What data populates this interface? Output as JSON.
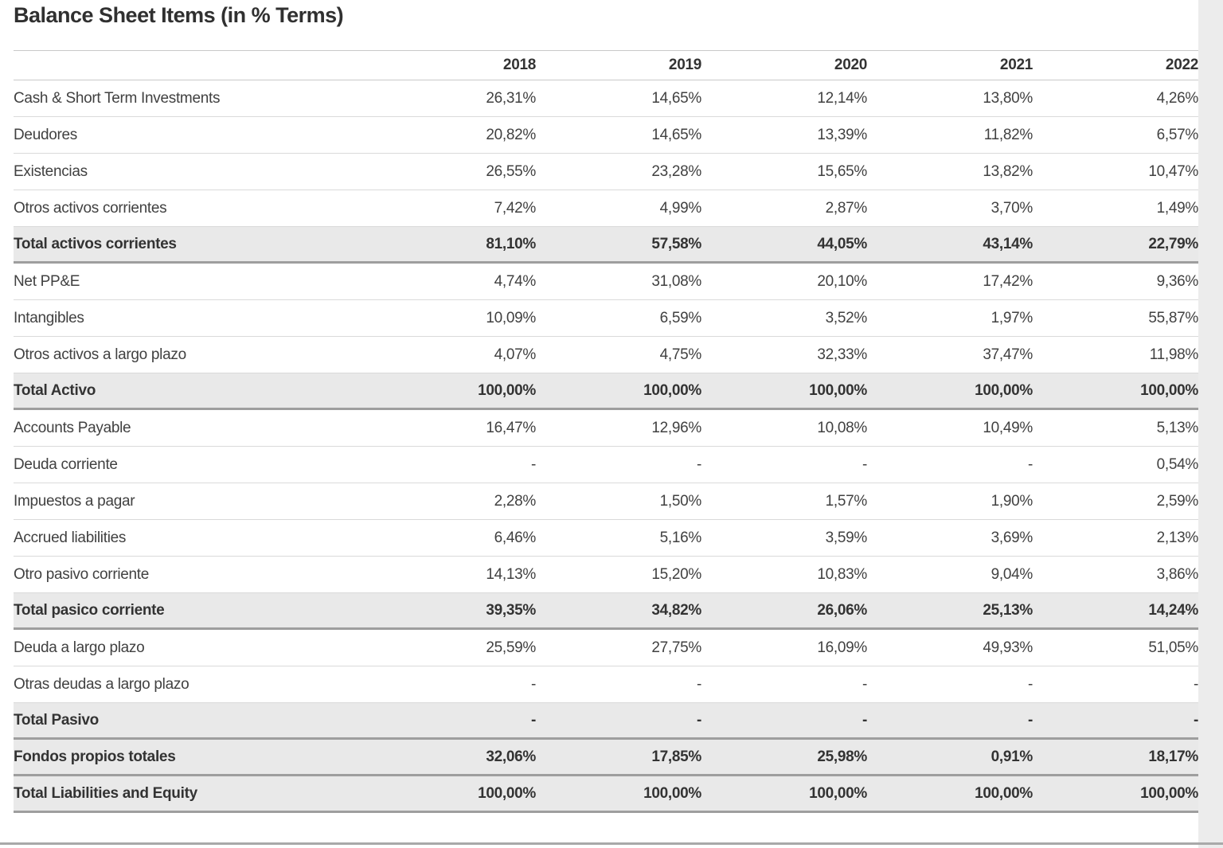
{
  "title": "Balance Sheet Items (in % Terms)",
  "table": {
    "columns": [
      "2018",
      "2019",
      "2020",
      "2021",
      "2022"
    ],
    "rows": [
      {
        "label": "Cash & Short Term Investments",
        "style": "normal",
        "cells": [
          "26,31%",
          "14,65%",
          "12,14%",
          "13,80%",
          "4,26%"
        ]
      },
      {
        "label": "Deudores",
        "style": "normal",
        "cells": [
          "20,82%",
          "14,65%",
          "13,39%",
          "11,82%",
          "6,57%"
        ]
      },
      {
        "label": "Existencias",
        "style": "normal",
        "cells": [
          "26,55%",
          "23,28%",
          "15,65%",
          "13,82%",
          "10,47%"
        ]
      },
      {
        "label": "Otros activos corrientes",
        "style": "normal",
        "cells": [
          "7,42%",
          "4,99%",
          "2,87%",
          "3,70%",
          "1,49%"
        ]
      },
      {
        "label": "Total activos corrientes",
        "style": "total",
        "cells": [
          "81,10%",
          "57,58%",
          "44,05%",
          "43,14%",
          "22,79%"
        ]
      },
      {
        "label": "Net PP&E",
        "style": "normal",
        "underline": true,
        "cells": [
          "4,74%",
          "31,08%",
          "20,10%",
          "17,42%",
          "9,36%"
        ]
      },
      {
        "label": "Intangibles",
        "style": "normal",
        "cells": [
          "10,09%",
          "6,59%",
          "3,52%",
          "1,97%",
          "55,87%"
        ]
      },
      {
        "label": "Otros activos a largo plazo",
        "style": "normal",
        "cells": [
          "4,07%",
          "4,75%",
          "32,33%",
          "37,47%",
          "11,98%"
        ]
      },
      {
        "label": "Total Activo",
        "style": "total",
        "cells": [
          "100,00%",
          "100,00%",
          "100,00%",
          "100,00%",
          "100,00%"
        ]
      },
      {
        "label": "Accounts Payable",
        "style": "normal",
        "cells": [
          "16,47%",
          "12,96%",
          "10,08%",
          "10,49%",
          "5,13%"
        ]
      },
      {
        "label": "Deuda corriente",
        "style": "normal",
        "cells": [
          "-",
          "-",
          "-",
          "-",
          "0,54%"
        ]
      },
      {
        "label": "Impuestos a pagar",
        "style": "normal",
        "cells": [
          "2,28%",
          "1,50%",
          "1,57%",
          "1,90%",
          "2,59%"
        ]
      },
      {
        "label": "Accrued liabilities",
        "style": "normal",
        "cells": [
          "6,46%",
          "5,16%",
          "3,59%",
          "3,69%",
          "2,13%"
        ]
      },
      {
        "label": "Otro pasivo corriente",
        "style": "normal",
        "cells": [
          "14,13%",
          "15,20%",
          "10,83%",
          "9,04%",
          "3,86%"
        ]
      },
      {
        "label": "Total pasico corriente",
        "style": "total",
        "cells": [
          "39,35%",
          "34,82%",
          "26,06%",
          "25,13%",
          "14,24%"
        ]
      },
      {
        "label": "Deuda a largo plazo",
        "style": "normal",
        "cells": [
          "25,59%",
          "27,75%",
          "16,09%",
          "49,93%",
          "51,05%"
        ]
      },
      {
        "label": "Otras deudas a largo plazo",
        "style": "normal",
        "cells": [
          "-",
          "-",
          "-",
          "-",
          "-"
        ]
      },
      {
        "label": "Total Pasivo",
        "style": "total",
        "cells": [
          "-",
          "-",
          "-",
          "-",
          "-"
        ]
      },
      {
        "label": "Fondos propios totales",
        "style": "total",
        "cells": [
          "32,06%",
          "17,85%",
          "25,98%",
          "0,91%",
          "18,17%"
        ]
      },
      {
        "label": "Total Liabilities and Equity",
        "style": "total",
        "cells": [
          "100,00%",
          "100,00%",
          "100,00%",
          "100,00%",
          "100,00%"
        ]
      }
    ]
  },
  "colors": {
    "text": "#3a3a3a",
    "bold_text": "#333333",
    "total_row_background": "#e9e9e9",
    "light_border": "#dadada",
    "header_border": "#c9c9c9",
    "dark_border": "#9e9e9e",
    "right_gutter": "#ececec"
  },
  "chart_data": {
    "type": "table",
    "title": "Balance Sheet Items (in % Terms)",
    "categories": [
      "2018",
      "2019",
      "2020",
      "2021",
      "2022"
    ],
    "unit": "percent",
    "series": [
      {
        "name": "Cash & Short Term Investments",
        "values": [
          26.31,
          14.65,
          12.14,
          13.8,
          4.26
        ]
      },
      {
        "name": "Deudores",
        "values": [
          20.82,
          14.65,
          13.39,
          11.82,
          6.57
        ]
      },
      {
        "name": "Existencias",
        "values": [
          26.55,
          23.28,
          15.65,
          13.82,
          10.47
        ]
      },
      {
        "name": "Otros activos corrientes",
        "values": [
          7.42,
          4.99,
          2.87,
          3.7,
          1.49
        ]
      },
      {
        "name": "Total activos corrientes",
        "values": [
          81.1,
          57.58,
          44.05,
          43.14,
          22.79
        ]
      },
      {
        "name": "Net PP&E",
        "values": [
          4.74,
          31.08,
          20.1,
          17.42,
          9.36
        ]
      },
      {
        "name": "Intangibles",
        "values": [
          10.09,
          6.59,
          3.52,
          1.97,
          55.87
        ]
      },
      {
        "name": "Otros activos a largo plazo",
        "values": [
          4.07,
          4.75,
          32.33,
          37.47,
          11.98
        ]
      },
      {
        "name": "Total Activo",
        "values": [
          100.0,
          100.0,
          100.0,
          100.0,
          100.0
        ]
      },
      {
        "name": "Accounts Payable",
        "values": [
          16.47,
          12.96,
          10.08,
          10.49,
          5.13
        ]
      },
      {
        "name": "Deuda corriente",
        "values": [
          null,
          null,
          null,
          null,
          0.54
        ]
      },
      {
        "name": "Impuestos a pagar",
        "values": [
          2.28,
          1.5,
          1.57,
          1.9,
          2.59
        ]
      },
      {
        "name": "Accrued liabilities",
        "values": [
          6.46,
          5.16,
          3.59,
          3.69,
          2.13
        ]
      },
      {
        "name": "Otro pasivo corriente",
        "values": [
          14.13,
          15.2,
          10.83,
          9.04,
          3.86
        ]
      },
      {
        "name": "Total pasico corriente",
        "values": [
          39.35,
          34.82,
          26.06,
          25.13,
          14.24
        ]
      },
      {
        "name": "Deuda a largo plazo",
        "values": [
          25.59,
          27.75,
          16.09,
          49.93,
          51.05
        ]
      },
      {
        "name": "Otras deudas a largo plazo",
        "values": [
          null,
          null,
          null,
          null,
          null
        ]
      },
      {
        "name": "Total Pasivo",
        "values": [
          null,
          null,
          null,
          null,
          null
        ]
      },
      {
        "name": "Fondos propios totales",
        "values": [
          32.06,
          17.85,
          25.98,
          0.91,
          18.17
        ]
      },
      {
        "name": "Total Liabilities and Equity",
        "values": [
          100.0,
          100.0,
          100.0,
          100.0,
          100.0
        ]
      }
    ]
  }
}
